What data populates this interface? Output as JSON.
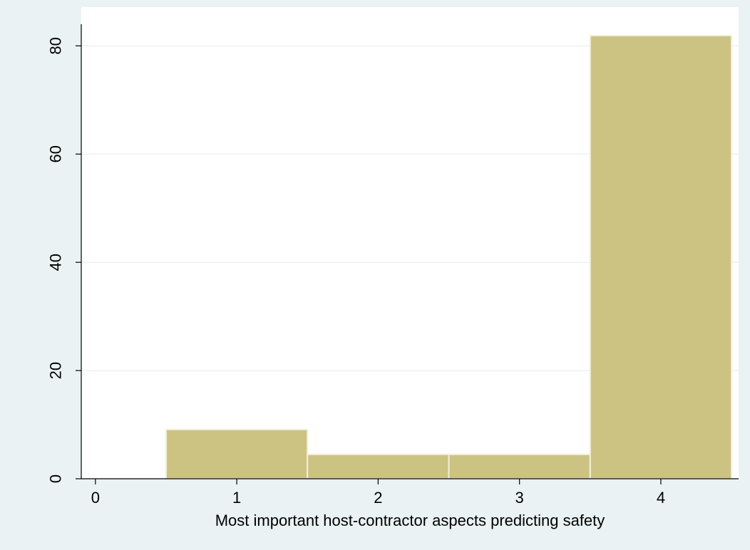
{
  "chart_data": {
    "type": "bar",
    "title": "",
    "xlabel": "Most important host-contractor aspects predicting safety",
    "ylabel": "",
    "xlim": [
      -0.1,
      4.55
    ],
    "ylim": [
      0,
      84
    ],
    "xticks": [
      "0",
      "1",
      "2",
      "3",
      "4"
    ],
    "yticks": [
      "0",
      "20",
      "40",
      "60",
      "80"
    ],
    "grid": true,
    "bars": [
      {
        "x0": 0.5,
        "x1": 1.5,
        "value": 9.1
      },
      {
        "x0": 1.5,
        "x1": 2.5,
        "value": 4.5
      },
      {
        "x0": 2.5,
        "x1": 3.5,
        "value": 4.5
      },
      {
        "x0": 3.5,
        "x1": 4.5,
        "value": 81.9
      }
    ],
    "colors": {
      "outer_background": "#eaf2f3",
      "plot_background": "#ffffff",
      "bar_fill": "#ccc383",
      "bar_edge": "#f3efd9",
      "grid": "#eaf2f3",
      "axis": "#000000"
    }
  }
}
